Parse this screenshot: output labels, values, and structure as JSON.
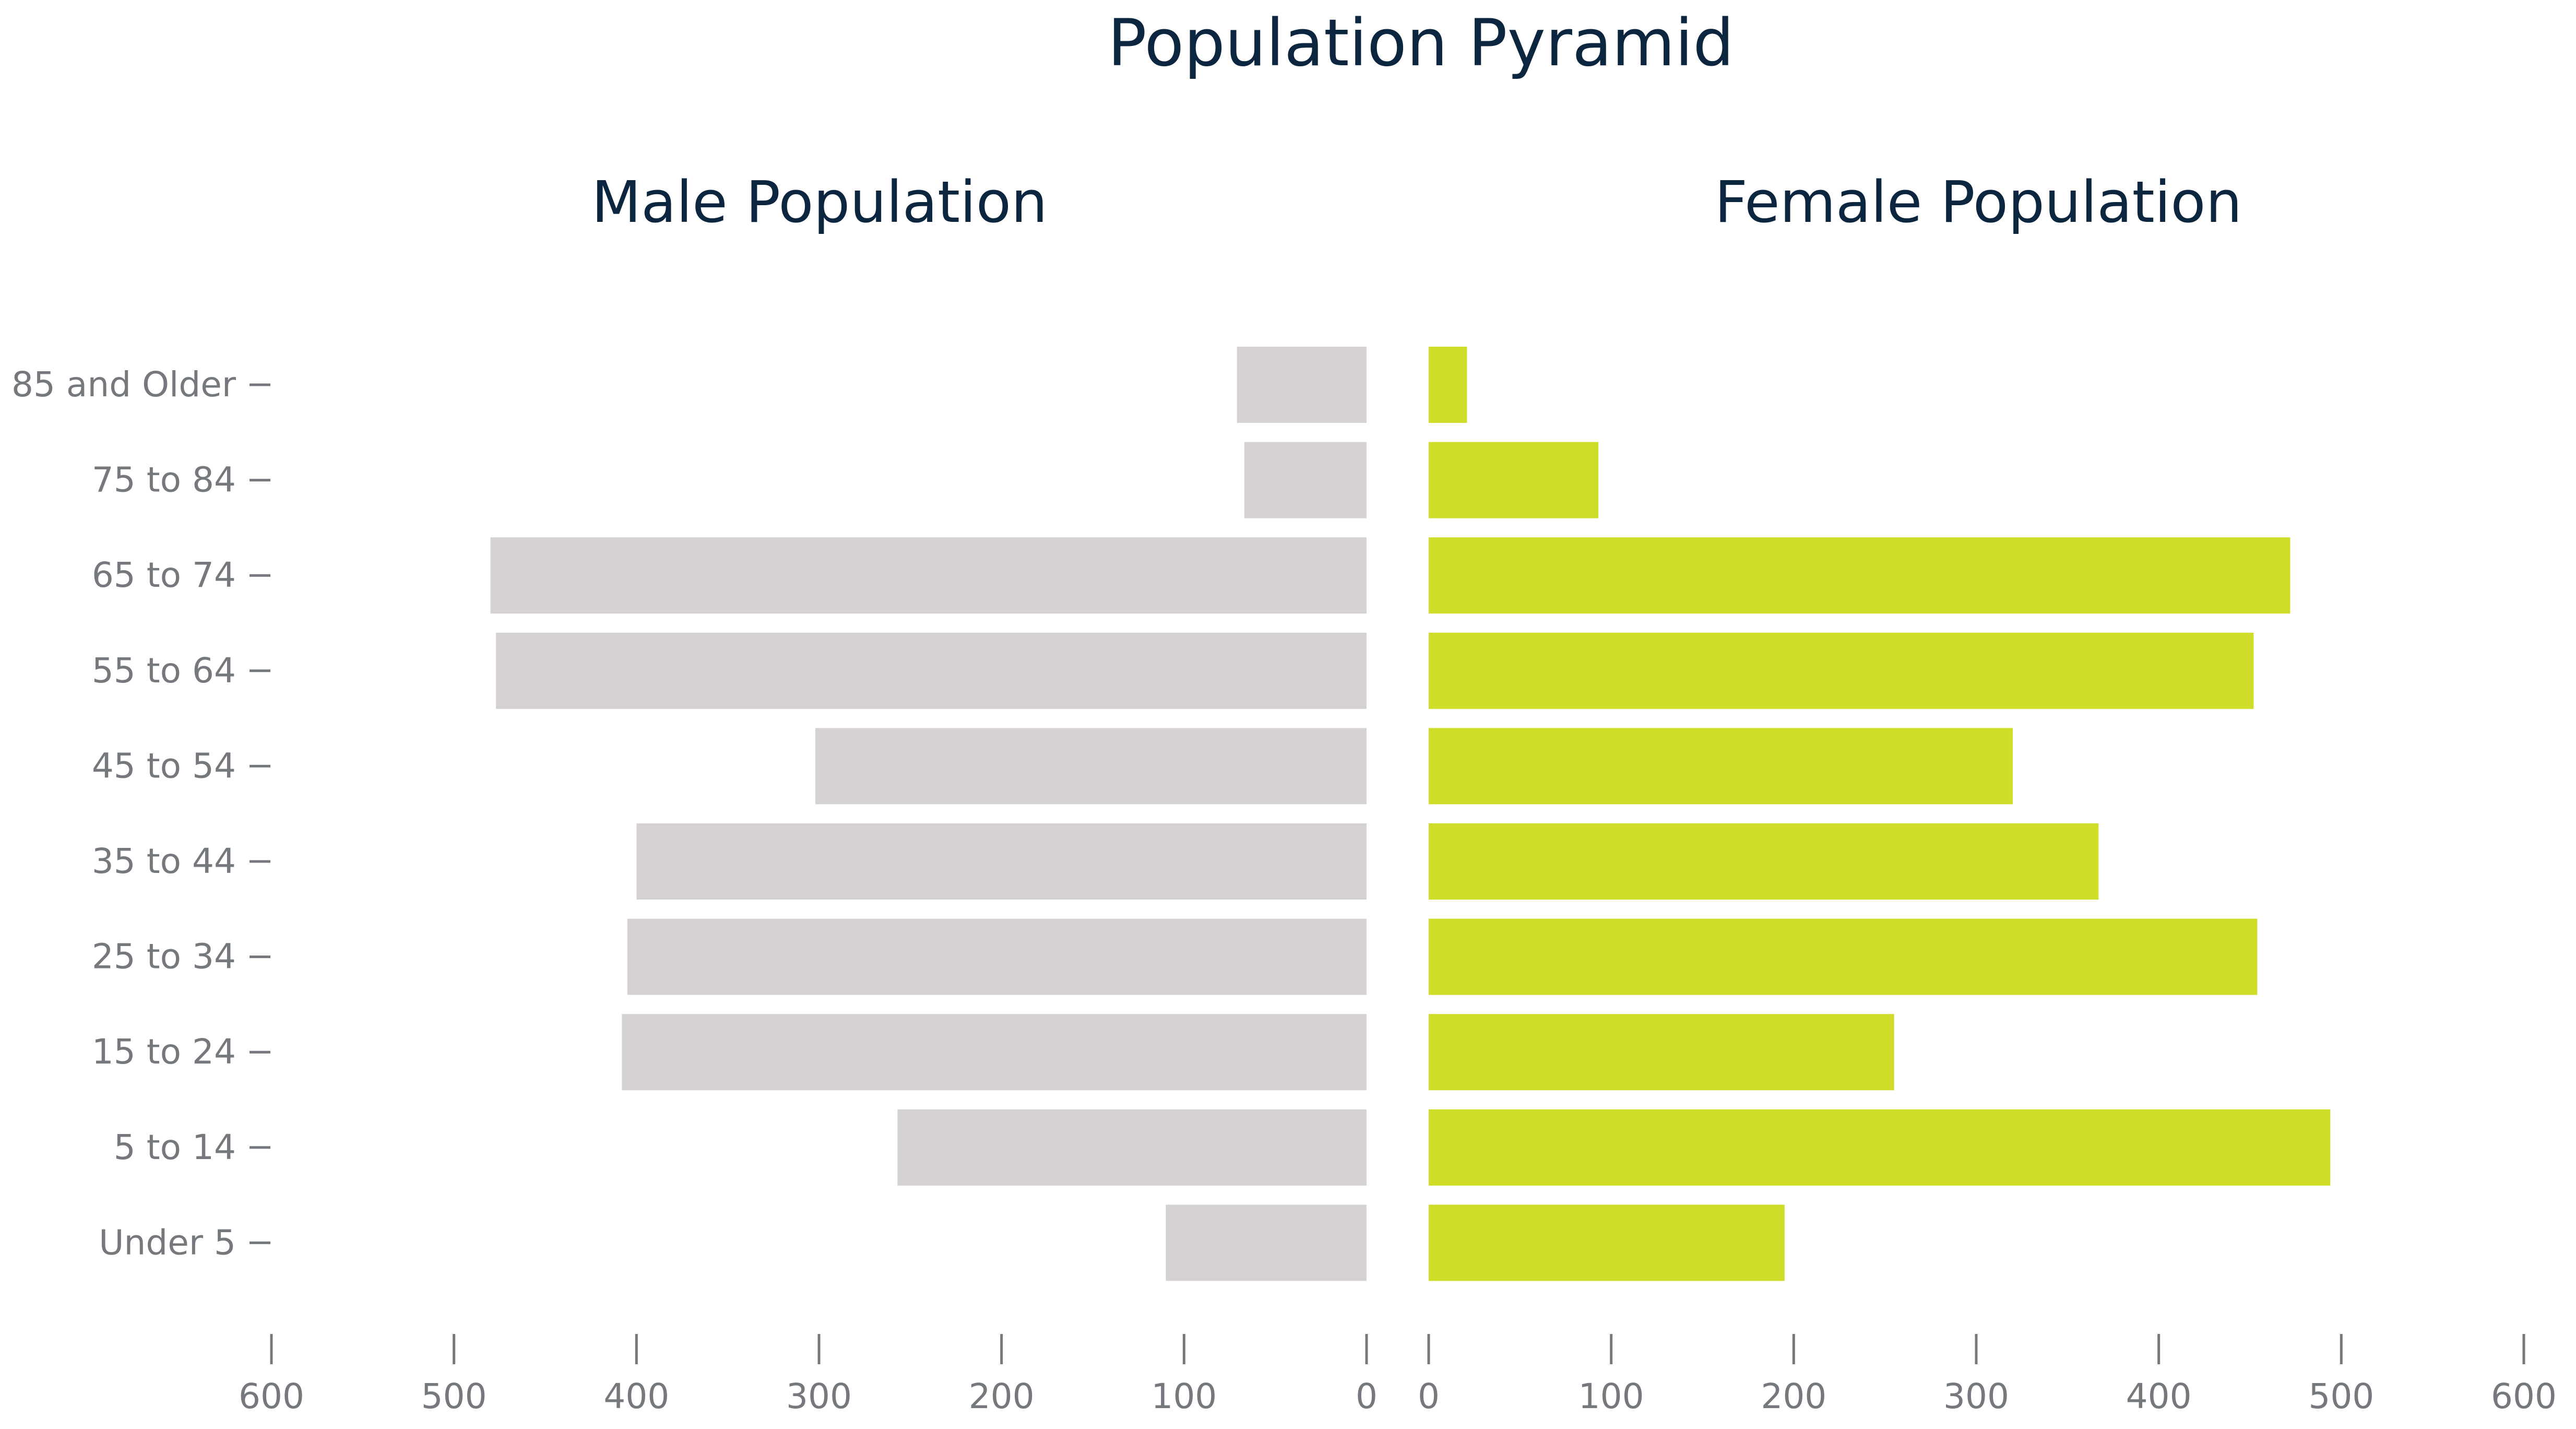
{
  "chart_data": {
    "type": "bar",
    "orientation": "horizontal",
    "layout": "population-pyramid",
    "title": "Population Pyramid",
    "panels": [
      {
        "name": "Male Population",
        "side": "left",
        "color": "#d6d2d4"
      },
      {
        "name": "Female Population",
        "side": "right",
        "color": "#cfdd29"
      }
    ],
    "categories": [
      "85 and Older",
      "75 to 84",
      "65 to 74",
      "55 to 64",
      "45 to 54",
      "35 to 44",
      "25 to 34",
      "15 to 24",
      "5 to 14",
      "Under 5"
    ],
    "series": [
      {
        "values": [
          71,
          67,
          480,
          477,
          302,
          400,
          405,
          408,
          257,
          110
        ]
      },
      {
        "values": [
          21,
          93,
          472,
          452,
          320,
          367,
          454,
          255,
          494,
          195
        ]
      }
    ],
    "xlim": [
      0,
      600
    ],
    "xticks": [
      "0",
      "100",
      "200",
      "300",
      "400",
      "500",
      "600"
    ],
    "grid": false,
    "legend": "none"
  }
}
